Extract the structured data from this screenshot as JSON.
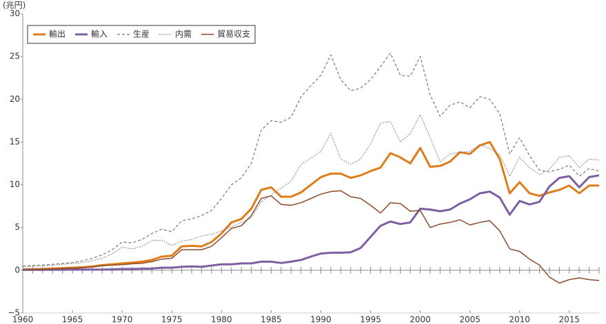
{
  "chart_data": {
    "type": "line",
    "y_unit": "(兆円)",
    "x": [
      1960,
      1961,
      1962,
      1963,
      1964,
      1965,
      1966,
      1967,
      1968,
      1969,
      1970,
      1971,
      1972,
      1973,
      1974,
      1975,
      1976,
      1977,
      1978,
      1979,
      1980,
      1981,
      1982,
      1983,
      1984,
      1985,
      1986,
      1987,
      1988,
      1989,
      1990,
      1991,
      1992,
      1993,
      1994,
      1995,
      1996,
      1997,
      1998,
      1999,
      2000,
      2001,
      2002,
      2003,
      2004,
      2005,
      2006,
      2007,
      2008,
      2009,
      2010,
      2011,
      2012,
      2013,
      2014,
      2015,
      2016,
      2017,
      2018
    ],
    "xlim": [
      1960,
      2018
    ],
    "xticks": [
      1960,
      1965,
      1970,
      1975,
      1980,
      1985,
      1990,
      1995,
      2000,
      2005,
      2010,
      2015
    ],
    "ylim": [
      -5,
      30
    ],
    "yticks": [
      {
        "value": -5,
        "label": "−5"
      },
      0,
      5,
      10,
      15,
      20,
      25,
      30
    ],
    "series": [
      {
        "name": "輸出",
        "color": "#e07b1a",
        "style": "solid",
        "width": 3,
        "values": [
          0.1,
          0.12,
          0.15,
          0.2,
          0.25,
          0.3,
          0.35,
          0.45,
          0.6,
          0.7,
          0.8,
          0.9,
          1.0,
          1.2,
          1.6,
          1.7,
          2.8,
          2.85,
          2.8,
          3.3,
          4.3,
          5.6,
          6.0,
          7.2,
          9.4,
          9.7,
          8.6,
          8.6,
          9.1,
          10.0,
          10.9,
          11.3,
          11.3,
          10.8,
          11.1,
          11.6,
          12.0,
          13.7,
          13.2,
          12.5,
          14.3,
          12.1,
          12.2,
          12.7,
          13.8,
          13.6,
          14.6,
          15.0,
          13.0,
          9.0,
          10.3,
          9.0,
          8.7,
          9.1,
          9.4,
          9.9,
          9.0,
          9.9,
          9.9
        ]
      },
      {
        "name": "輸入",
        "color": "#7e5ea3",
        "style": "solid",
        "width": 3,
        "values": [
          0.05,
          0.05,
          0.05,
          0.06,
          0.06,
          0.07,
          0.07,
          0.08,
          0.08,
          0.1,
          0.15,
          0.15,
          0.18,
          0.2,
          0.3,
          0.3,
          0.4,
          0.45,
          0.4,
          0.55,
          0.7,
          0.7,
          0.8,
          0.8,
          1.0,
          1.0,
          0.85,
          1.0,
          1.2,
          1.6,
          1.95,
          2.05,
          2.05,
          2.1,
          2.6,
          3.9,
          5.2,
          5.7,
          5.4,
          5.6,
          7.2,
          7.1,
          6.9,
          7.1,
          7.8,
          8.3,
          9.0,
          9.2,
          8.5,
          6.5,
          8.1,
          7.7,
          8.0,
          9.8,
          10.8,
          11.0,
          9.7,
          10.9,
          11.1
        ]
      },
      {
        "name": "生産",
        "color": "#777777",
        "style": "dashed",
        "width": 1.2,
        "values": [
          0.5,
          0.55,
          0.6,
          0.7,
          0.8,
          0.9,
          1.1,
          1.4,
          1.8,
          2.4,
          3.3,
          3.2,
          3.6,
          4.3,
          4.8,
          4.5,
          5.8,
          6.0,
          6.4,
          7.0,
          8.4,
          10.0,
          10.8,
          12.5,
          16.4,
          17.5,
          17.3,
          17.9,
          20.3,
          21.6,
          22.8,
          25.2,
          22.3,
          21.0,
          21.3,
          22.3,
          23.8,
          25.4,
          22.8,
          22.7,
          25.0,
          20.5,
          18.0,
          19.3,
          19.7,
          19.0,
          20.3,
          20.0,
          18.3,
          13.6,
          15.5,
          13.4,
          11.7,
          11.5,
          11.8,
          12.3,
          11.0,
          11.9,
          11.6
        ]
      },
      {
        "name": "内需",
        "color": "#777777",
        "style": "dotted",
        "width": 1.2,
        "values": [
          0.4,
          0.45,
          0.5,
          0.6,
          0.7,
          0.8,
          0.9,
          1.1,
          1.4,
          1.9,
          2.7,
          2.5,
          2.8,
          3.5,
          3.5,
          2.9,
          3.4,
          3.6,
          4.0,
          4.2,
          4.6,
          5.1,
          5.6,
          6.1,
          8.0,
          8.8,
          9.6,
          10.4,
          12.4,
          13.1,
          13.9,
          16.0,
          13.0,
          12.4,
          13.0,
          14.8,
          17.2,
          17.4,
          15.0,
          16.0,
          18.2,
          15.5,
          12.7,
          13.6,
          13.8,
          13.9,
          14.7,
          14.2,
          13.5,
          11.0,
          13.2,
          12.0,
          11.2,
          11.8,
          13.2,
          13.4,
          12.0,
          13.0,
          12.9
        ]
      },
      {
        "name": "貿易収支",
        "color": "#8b4a2b",
        "style": "solid",
        "width": 1.5,
        "values": [
          0.05,
          0.07,
          0.1,
          0.14,
          0.19,
          0.23,
          0.28,
          0.37,
          0.52,
          0.6,
          0.65,
          0.75,
          0.82,
          1.0,
          1.3,
          1.4,
          2.4,
          2.4,
          2.4,
          2.8,
          3.8,
          4.9,
          5.2,
          6.4,
          8.4,
          8.7,
          7.7,
          7.6,
          7.9,
          8.4,
          8.9,
          9.2,
          9.3,
          8.6,
          8.4,
          7.6,
          6.7,
          7.9,
          7.8,
          6.9,
          7.0,
          5.0,
          5.4,
          5.6,
          5.9,
          5.3,
          5.6,
          5.8,
          4.6,
          2.5,
          2.2,
          1.3,
          0.6,
          -0.8,
          -1.5,
          -1.1,
          -0.9,
          -1.1,
          -1.2
        ]
      }
    ]
  }
}
